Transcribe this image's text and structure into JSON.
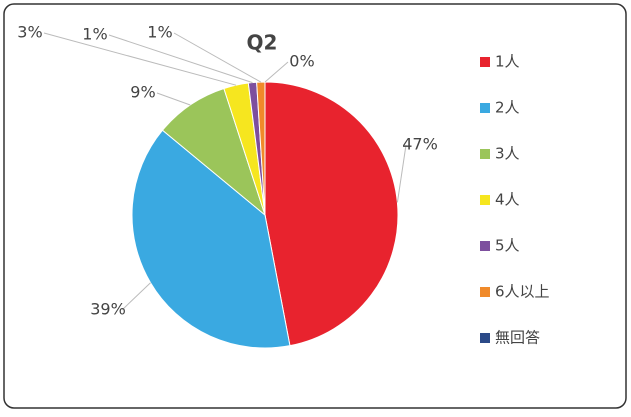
{
  "chart_data": {
    "type": "pie",
    "title": "Q2",
    "categories": [
      "1人",
      "2人",
      "3人",
      "4人",
      "5人",
      "6人以上",
      "無回答"
    ],
    "values": [
      47,
      39,
      9,
      3,
      1,
      1,
      0
    ],
    "value_labels": [
      "47%",
      "39%",
      "9%",
      "3%",
      "1%",
      "1%",
      "0%"
    ],
    "colors": [
      "#e8232e",
      "#3aa9e1",
      "#9bc55a",
      "#f6e61f",
      "#7d4f9e",
      "#f08a2a",
      "#2b4a88"
    ],
    "legend": "right"
  }
}
